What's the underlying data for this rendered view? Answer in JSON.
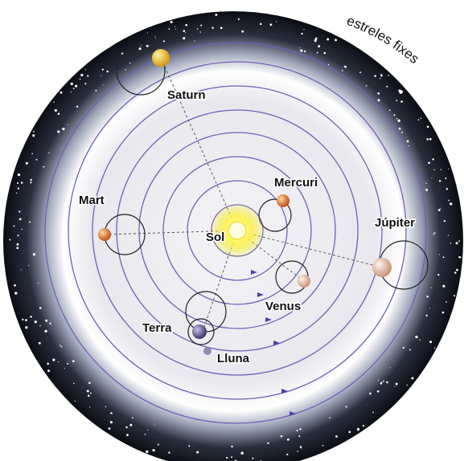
{
  "outer_label": "estreles fixes",
  "bodies": [
    {
      "label": "Sol"
    },
    {
      "label": "Mercuri"
    },
    {
      "label": "Venus"
    },
    {
      "label": "Terra"
    },
    {
      "label": "Lluna"
    },
    {
      "label": "Mart"
    },
    {
      "label": "Júpiter"
    },
    {
      "label": "Saturn"
    }
  ]
}
